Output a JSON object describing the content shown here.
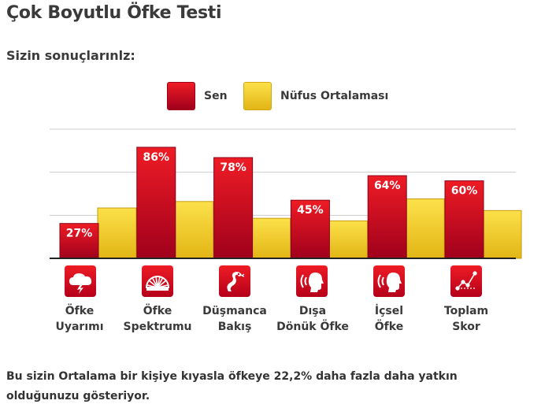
{
  "title": "Çok Boyutlu Öfke Testi",
  "subtitle": "Sizin sonuçlarınlz:",
  "legend": {
    "you": "Sen",
    "population": "Nüfus Ortalaması"
  },
  "colors": {
    "you_top": "#ee1c25",
    "you_bottom": "#a0001c",
    "pop_top": "#fce14a",
    "pop_bottom": "#e2b515",
    "axis": "#222222",
    "grid": "#cccccc"
  },
  "categories": [
    {
      "line1": "Öfke",
      "line2": "Uyarımı",
      "icon": "cloud-lightning-icon"
    },
    {
      "line1": "Öfke",
      "line2": "Spektrumu",
      "icon": "fan-spectrum-icon"
    },
    {
      "line1": "Düşmanca",
      "line2": "Bakış",
      "icon": "snake-icon"
    },
    {
      "line1": "Dışa",
      "line2": "Dönük Öfke",
      "icon": "head-outward-sound-icon"
    },
    {
      "line1": "İçsel",
      "line2": "Öfke",
      "icon": "head-inward-sound-icon"
    },
    {
      "line1": "Toplam",
      "line2": "Skor",
      "icon": "score-graph-icon"
    }
  ],
  "chart_data": {
    "type": "bar",
    "title": "Çok Boyutlu Öfke Testi",
    "xlabel": "",
    "ylabel": "",
    "ylim": [
      0,
      100
    ],
    "grid": true,
    "legend_position": "top-center",
    "categories": [
      "Öfke Uyarımı",
      "Öfke Spektrumu",
      "Düşmanca Bakış",
      "Dışa Dönük Öfke",
      "İçsel Öfke",
      "Toplam Skor"
    ],
    "series": [
      {
        "name": "Sen",
        "values": [
          27,
          86,
          78,
          45,
          64,
          60
        ],
        "labels": [
          "27%",
          "86%",
          "78%",
          "45%",
          "64%",
          "60%"
        ]
      },
      {
        "name": "Nüfus Ortalaması",
        "values": [
          39,
          44,
          31,
          29,
          46,
          37
        ]
      }
    ]
  },
  "footer": "Bu sizin Ortalama bir kişiye kıyasla öfkeye 22,2% daha fazla daha yatkın olduğunuzu gösteriyor."
}
